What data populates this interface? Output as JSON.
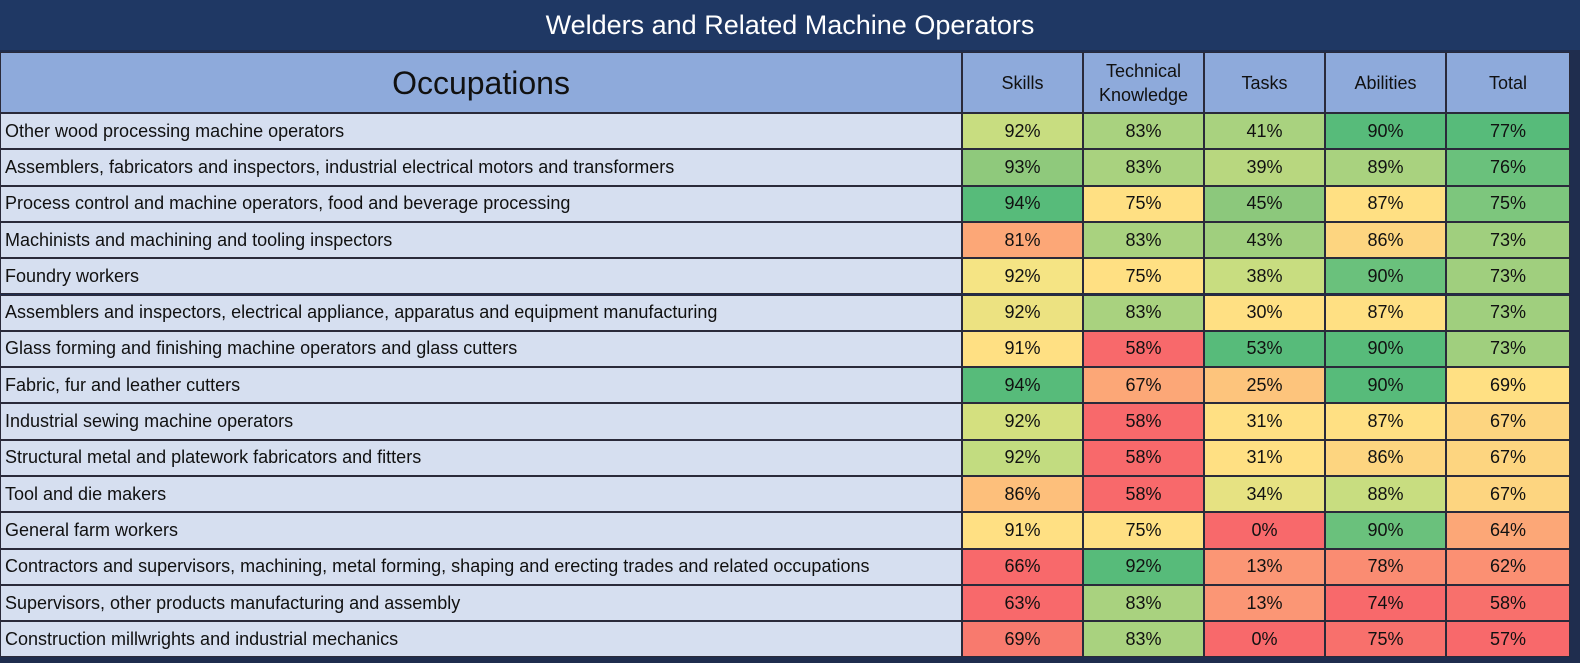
{
  "title": "Welders and Related Machine Operators",
  "table": {
    "headers": [
      "Occupations",
      "Skills",
      "Technical Knowledge",
      "Tasks",
      "Abilities",
      "Total"
    ],
    "rows": [
      {
        "occupation": "Other wood processing machine operators",
        "cells": [
          "92%",
          "83%",
          "41%",
          "90%",
          "77%"
        ],
        "colors": [
          "#c8dd80",
          "#a9d27f",
          "#a9d27f",
          "#57bb7a",
          "#57bb7a"
        ]
      },
      {
        "occupation": "Assemblers, fabricators and inspectors, industrial electrical motors and transformers",
        "cells": [
          "93%",
          "83%",
          "39%",
          "89%",
          "76%"
        ],
        "colors": [
          "#8fc97c",
          "#a9d27f",
          "#b8d77f",
          "#a9d27f",
          "#6ac17c"
        ]
      },
      {
        "occupation": "Process control and machine operators, food and beverage processing",
        "cells": [
          "94%",
          "75%",
          "45%",
          "87%",
          "75%"
        ],
        "colors": [
          "#57bb7a",
          "#ffe083",
          "#8cc87c",
          "#ffe083",
          "#7dc67d"
        ]
      },
      {
        "occupation": "Machinists and machining and tooling inspectors",
        "cells": [
          "81%",
          "83%",
          "43%",
          "86%",
          "73%"
        ],
        "colors": [
          "#fca777",
          "#a9d27f",
          "#a0cf7e",
          "#fdd580",
          "#a0cf7e"
        ]
      },
      {
        "occupation": "Foundry workers",
        "cells": [
          "92%",
          "75%",
          "38%",
          "90%",
          "73%"
        ],
        "colors": [
          "#f5e484",
          "#ffe083",
          "#c8dd80",
          "#6ac17c",
          "#a0cf7e"
        ]
      },
      {
        "occupation": "Assemblers and inspectors, electrical appliance, apparatus and equipment manufacturing",
        "cells": [
          "92%",
          "83%",
          "30%",
          "87%",
          "73%"
        ],
        "colors": [
          "#ece281",
          "#a9d27f",
          "#ffe083",
          "#ffe083",
          "#a0cf7e"
        ]
      },
      {
        "occupation": "Glass forming and finishing machine operators and glass cutters",
        "cells": [
          "91%",
          "58%",
          "53%",
          "90%",
          "73%"
        ],
        "colors": [
          "#ffe083",
          "#f8696b",
          "#57bb7a",
          "#57bb7a",
          "#a0cf7e"
        ]
      },
      {
        "occupation": "Fabric, fur and leather cutters",
        "cells": [
          "94%",
          "67%",
          "25%",
          "90%",
          "69%"
        ],
        "colors": [
          "#57bb7a",
          "#fca777",
          "#fdc47c",
          "#57bb7a",
          "#ffe083"
        ]
      },
      {
        "occupation": "Industrial sewing machine operators",
        "cells": [
          "92%",
          "58%",
          "31%",
          "87%",
          "67%"
        ],
        "colors": [
          "#d4e07f",
          "#f8696b",
          "#ffe083",
          "#ffe083",
          "#fdd580"
        ]
      },
      {
        "occupation": "Structural metal and platework fabricators and fitters",
        "cells": [
          "92%",
          "58%",
          "31%",
          "86%",
          "67%"
        ],
        "colors": [
          "#c2dc80",
          "#f8696b",
          "#ffe083",
          "#fdd580",
          "#fdd580"
        ]
      },
      {
        "occupation": "Tool and die makers",
        "cells": [
          "86%",
          "58%",
          "34%",
          "88%",
          "67%"
        ],
        "colors": [
          "#fdbf7b",
          "#f8696b",
          "#e6e282",
          "#c8dd80",
          "#fdd580"
        ]
      },
      {
        "occupation": "General farm workers",
        "cells": [
          "91%",
          "75%",
          "0%",
          "90%",
          "64%"
        ],
        "colors": [
          "#ffe083",
          "#ffe083",
          "#f8696b",
          "#6ac17c",
          "#fca777"
        ]
      },
      {
        "occupation": "Contractors and supervisors, machining, metal forming, shaping and erecting trades and related occupations",
        "cells": [
          "66%",
          "92%",
          "13%",
          "78%",
          "62%"
        ],
        "colors": [
          "#f8696b",
          "#57bb7a",
          "#fb9675",
          "#fa8c72",
          "#fb9073"
        ]
      },
      {
        "occupation": "Supervisors, other products manufacturing and assembly",
        "cells": [
          "63%",
          "83%",
          "13%",
          "74%",
          "58%"
        ],
        "colors": [
          "#f8696b",
          "#a9d27f",
          "#fb9675",
          "#f8696b",
          "#f8706c"
        ]
      },
      {
        "occupation": "Construction millwrights and industrial mechanics",
        "cells": [
          "69%",
          "83%",
          "0%",
          "75%",
          "57%"
        ],
        "colors": [
          "#f87a6e",
          "#a9d27f",
          "#f8696b",
          "#f8706c",
          "#f8696b"
        ]
      }
    ]
  }
}
